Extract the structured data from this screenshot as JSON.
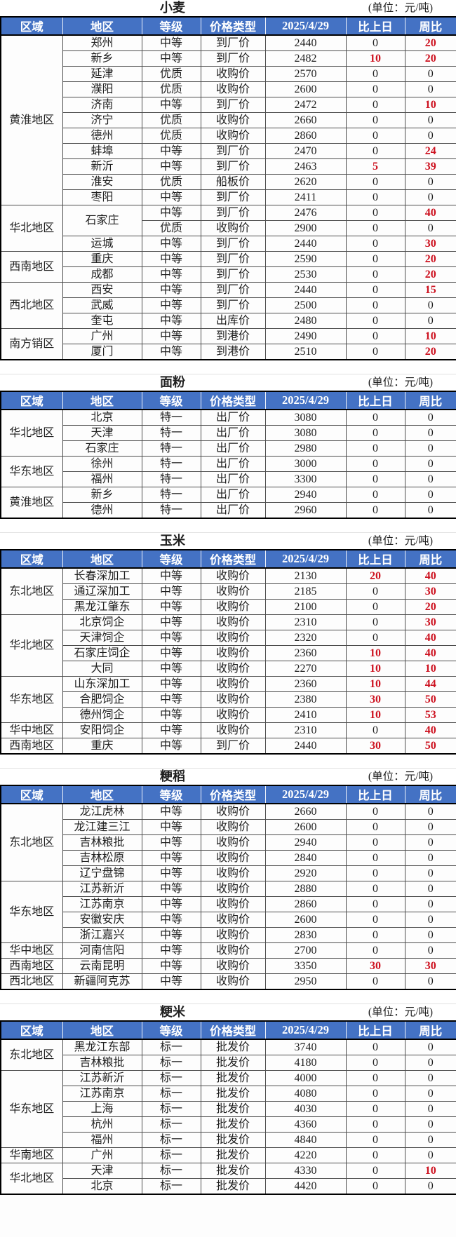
{
  "unit_label": "(单位：元/吨)",
  "columns": [
    "区域",
    "地区",
    "等级",
    "价格类型",
    "2025/4/29",
    "比上日",
    "周比"
  ],
  "colors": {
    "header_bg": "#4472c4",
    "header_text": "#ffffff",
    "change_red": "#cd1220",
    "body_text": "#1f1f1f"
  },
  "sections": [
    {
      "id": "wheat",
      "title": "小麦",
      "groups": [
        {
          "region": "黄淮地区",
          "rows": [
            {
              "place": "郑州",
              "grade": "中等",
              "ptype": "到厂价",
              "price": "2440",
              "dod": "0",
              "wow": "20",
              "red": [
                "wow"
              ]
            },
            {
              "place": "新乡",
              "grade": "中等",
              "ptype": "到厂价",
              "price": "2482",
              "dod": "10",
              "wow": "20",
              "red": [
                "dod",
                "wow"
              ]
            },
            {
              "place": "延津",
              "grade": "优质",
              "ptype": "收购价",
              "price": "2570",
              "dod": "0",
              "wow": "0",
              "red": []
            },
            {
              "place": "濮阳",
              "grade": "优质",
              "ptype": "收购价",
              "price": "2600",
              "dod": "0",
              "wow": "0",
              "red": []
            },
            {
              "place": "济南",
              "grade": "中等",
              "ptype": "到厂价",
              "price": "2472",
              "dod": "0",
              "wow": "10",
              "red": [
                "wow"
              ]
            },
            {
              "place": "济宁",
              "grade": "优质",
              "ptype": "收购价",
              "price": "2660",
              "dod": "0",
              "wow": "0",
              "red": []
            },
            {
              "place": "德州",
              "grade": "优质",
              "ptype": "收购价",
              "price": "2860",
              "dod": "0",
              "wow": "0",
              "red": []
            },
            {
              "place": "蚌埠",
              "grade": "中等",
              "ptype": "到厂价",
              "price": "2470",
              "dod": "0",
              "wow": "24",
              "red": [
                "wow"
              ]
            },
            {
              "place": "新沂",
              "grade": "中等",
              "ptype": "到厂价",
              "price": "2463",
              "dod": "5",
              "wow": "39",
              "red": [
                "dod",
                "wow"
              ]
            },
            {
              "place": "淮安",
              "grade": "优质",
              "ptype": "船板价",
              "price": "2620",
              "dod": "0",
              "wow": "0",
              "red": []
            },
            {
              "place": "枣阳",
              "grade": "中等",
              "ptype": "到厂价",
              "price": "2411",
              "dod": "0",
              "wow": "0",
              "red": []
            }
          ]
        },
        {
          "region": "华北地区",
          "rows": [
            {
              "place": "石家庄",
              "place_span": 2,
              "grade": "中等",
              "ptype": "到厂价",
              "price": "2476",
              "dod": "0",
              "wow": "40",
              "red": [
                "wow"
              ]
            },
            {
              "place_skip": true,
              "grade": "优质",
              "ptype": "收购价",
              "price": "2900",
              "dod": "0",
              "wow": "0",
              "red": []
            },
            {
              "place": "运城",
              "grade": "中等",
              "ptype": "到厂价",
              "price": "2440",
              "dod": "0",
              "wow": "30",
              "red": [
                "wow"
              ]
            }
          ]
        },
        {
          "region": "西南地区",
          "rows": [
            {
              "place": "重庆",
              "grade": "中等",
              "ptype": "到厂价",
              "price": "2590",
              "dod": "0",
              "wow": "20",
              "red": [
                "wow"
              ]
            },
            {
              "place": "成都",
              "grade": "中等",
              "ptype": "到厂价",
              "price": "2530",
              "dod": "0",
              "wow": "20",
              "red": [
                "wow"
              ]
            }
          ]
        },
        {
          "region": "西北地区",
          "rows": [
            {
              "place": "西安",
              "grade": "中等",
              "ptype": "到厂价",
              "price": "2440",
              "dod": "0",
              "wow": "15",
              "red": [
                "wow"
              ]
            },
            {
              "place": "武威",
              "grade": "中等",
              "ptype": "到厂价",
              "price": "2500",
              "dod": "0",
              "wow": "0",
              "red": []
            },
            {
              "place": "奎屯",
              "grade": "中等",
              "ptype": "出库价",
              "price": "2480",
              "dod": "0",
              "wow": "0",
              "red": []
            }
          ]
        },
        {
          "region": "南方销区",
          "rows": [
            {
              "place": "广州",
              "grade": "中等",
              "ptype": "到港价",
              "price": "2490",
              "dod": "0",
              "wow": "10",
              "red": [
                "wow"
              ]
            },
            {
              "place": "厦门",
              "grade": "中等",
              "ptype": "到港价",
              "price": "2510",
              "dod": "0",
              "wow": "20",
              "red": [
                "wow"
              ]
            }
          ]
        }
      ]
    },
    {
      "id": "flour",
      "title": "面粉",
      "groups": [
        {
          "region": "华北地区",
          "rows": [
            {
              "place": "北京",
              "grade": "特一",
              "ptype": "出厂价",
              "price": "3080",
              "dod": "0",
              "wow": "0",
              "red": []
            },
            {
              "place": "天津",
              "grade": "特一",
              "ptype": "出厂价",
              "price": "3080",
              "dod": "0",
              "wow": "0",
              "red": []
            },
            {
              "place": "石家庄",
              "grade": "特一",
              "ptype": "出厂价",
              "price": "2980",
              "dod": "0",
              "wow": "0",
              "red": []
            }
          ]
        },
        {
          "region": "华东地区",
          "rows": [
            {
              "place": "徐州",
              "grade": "特一",
              "ptype": "出厂价",
              "price": "3000",
              "dod": "0",
              "wow": "0",
              "red": []
            },
            {
              "place": "福州",
              "grade": "特一",
              "ptype": "出厂价",
              "price": "3300",
              "dod": "0",
              "wow": "0",
              "red": []
            }
          ]
        },
        {
          "region": "黄淮地区",
          "rows": [
            {
              "place": "新乡",
              "grade": "特一",
              "ptype": "出厂价",
              "price": "2940",
              "dod": "0",
              "wow": "0",
              "red": []
            },
            {
              "place": "德州",
              "grade": "特一",
              "ptype": "出厂价",
              "price": "2960",
              "dod": "0",
              "wow": "0",
              "red": []
            }
          ]
        }
      ]
    },
    {
      "id": "corn",
      "title": "玉米",
      "groups": [
        {
          "region": "东北地区",
          "rows": [
            {
              "place": "长春深加工",
              "grade": "中等",
              "ptype": "收购价",
              "price": "2130",
              "dod": "20",
              "wow": "40",
              "red": [
                "dod",
                "wow"
              ]
            },
            {
              "place": "通辽深加工",
              "grade": "中等",
              "ptype": "收购价",
              "price": "2185",
              "dod": "0",
              "wow": "30",
              "red": [
                "wow"
              ]
            },
            {
              "place": "黑龙江肇东",
              "grade": "中等",
              "ptype": "收购价",
              "price": "2100",
              "dod": "0",
              "wow": "20",
              "red": [
                "wow"
              ]
            }
          ]
        },
        {
          "region": "华北地区",
          "rows": [
            {
              "place": "北京饲企",
              "grade": "中等",
              "ptype": "收购价",
              "price": "2310",
              "dod": "0",
              "wow": "30",
              "red": [
                "wow"
              ]
            },
            {
              "place": "天津饲企",
              "grade": "中等",
              "ptype": "收购价",
              "price": "2320",
              "dod": "0",
              "wow": "40",
              "red": [
                "wow"
              ]
            },
            {
              "place": "石家庄饲企",
              "grade": "中等",
              "ptype": "收购价",
              "price": "2360",
              "dod": "10",
              "wow": "40",
              "red": [
                "dod",
                "wow"
              ]
            },
            {
              "place": "大同",
              "grade": "中等",
              "ptype": "收购价",
              "price": "2270",
              "dod": "10",
              "wow": "10",
              "red": [
                "dod",
                "wow"
              ]
            }
          ]
        },
        {
          "region": "华东地区",
          "rows": [
            {
              "place": "山东深加工",
              "grade": "中等",
              "ptype": "收购价",
              "price": "2360",
              "dod": "10",
              "wow": "44",
              "red": [
                "dod",
                "wow"
              ]
            },
            {
              "place": "合肥饲企",
              "grade": "中等",
              "ptype": "收购价",
              "price": "2380",
              "dod": "30",
              "wow": "50",
              "red": [
                "dod",
                "wow"
              ]
            },
            {
              "place": "德州饲企",
              "grade": "中等",
              "ptype": "收购价",
              "price": "2410",
              "dod": "10",
              "wow": "53",
              "red": [
                "dod",
                "wow"
              ]
            }
          ]
        },
        {
          "region": "华中地区",
          "rows": [
            {
              "place": "安阳饲企",
              "grade": "中等",
              "ptype": "收购价",
              "price": "2310",
              "dod": "0",
              "wow": "40",
              "red": [
                "wow"
              ]
            }
          ]
        },
        {
          "region": "西南地区",
          "rows": [
            {
              "place": "重庆",
              "grade": "中等",
              "ptype": "到厂价",
              "price": "2440",
              "dod": "30",
              "wow": "50",
              "red": [
                "dod",
                "wow"
              ]
            }
          ]
        }
      ]
    },
    {
      "id": "japonica-paddy",
      "title": "粳稻",
      "groups": [
        {
          "region": "东北地区",
          "rows": [
            {
              "place": "龙江虎林",
              "grade": "中等",
              "ptype": "收购价",
              "price": "2660",
              "dod": "0",
              "wow": "0",
              "red": []
            },
            {
              "place": "龙江建三江",
              "grade": "中等",
              "ptype": "收购价",
              "price": "2600",
              "dod": "0",
              "wow": "0",
              "red": []
            },
            {
              "place": "吉林粮批",
              "grade": "中等",
              "ptype": "收购价",
              "price": "2940",
              "dod": "0",
              "wow": "0",
              "red": []
            },
            {
              "place": "吉林松原",
              "grade": "中等",
              "ptype": "收购价",
              "price": "2840",
              "dod": "0",
              "wow": "0",
              "red": []
            },
            {
              "place": "辽宁盘锦",
              "grade": "中等",
              "ptype": "收购价",
              "price": "2920",
              "dod": "0",
              "wow": "0",
              "red": []
            }
          ]
        },
        {
          "region": "华东地区",
          "rows": [
            {
              "place": "江苏新沂",
              "grade": "中等",
              "ptype": "收购价",
              "price": "2880",
              "dod": "0",
              "wow": "0",
              "red": []
            },
            {
              "place": "江苏南京",
              "grade": "中等",
              "ptype": "收购价",
              "price": "2860",
              "dod": "0",
              "wow": "0",
              "red": []
            },
            {
              "place": "安徽安庆",
              "grade": "中等",
              "ptype": "收购价",
              "price": "2600",
              "dod": "0",
              "wow": "0",
              "red": []
            },
            {
              "place": "浙江嘉兴",
              "grade": "中等",
              "ptype": "收购价",
              "price": "2830",
              "dod": "0",
              "wow": "0",
              "red": []
            }
          ]
        },
        {
          "region": "华中地区",
          "rows": [
            {
              "place": "河南信阳",
              "grade": "中等",
              "ptype": "收购价",
              "price": "2700",
              "dod": "0",
              "wow": "0",
              "red": []
            }
          ]
        },
        {
          "region": "西南地区",
          "rows": [
            {
              "place": "云南昆明",
              "grade": "中等",
              "ptype": "收购价",
              "price": "3350",
              "dod": "30",
              "wow": "30",
              "red": [
                "dod",
                "wow"
              ]
            }
          ]
        },
        {
          "region": "西北地区",
          "rows": [
            {
              "place": "新疆阿克苏",
              "grade": "中等",
              "ptype": "收购价",
              "price": "2950",
              "dod": "0",
              "wow": "0",
              "red": []
            }
          ]
        }
      ]
    },
    {
      "id": "japonica-rice",
      "title": "粳米",
      "groups": [
        {
          "region": "东北地区",
          "rows": [
            {
              "place": "黑龙江东部",
              "grade": "标一",
              "ptype": "批发价",
              "price": "3740",
              "dod": "0",
              "wow": "0",
              "red": []
            },
            {
              "place": "吉林粮批",
              "grade": "标一",
              "ptype": "批发价",
              "price": "4180",
              "dod": "0",
              "wow": "0",
              "red": []
            }
          ]
        },
        {
          "region": "华东地区",
          "rows": [
            {
              "place": "江苏新沂",
              "grade": "标一",
              "ptype": "批发价",
              "price": "4000",
              "dod": "0",
              "wow": "0",
              "red": []
            },
            {
              "place": "江苏南京",
              "grade": "标一",
              "ptype": "批发价",
              "price": "4080",
              "dod": "0",
              "wow": "0",
              "red": []
            },
            {
              "place": "上海",
              "grade": "标一",
              "ptype": "批发价",
              "price": "4030",
              "dod": "0",
              "wow": "0",
              "red": []
            },
            {
              "place": "杭州",
              "grade": "标一",
              "ptype": "批发价",
              "price": "4360",
              "dod": "0",
              "wow": "0",
              "red": []
            },
            {
              "place": "福州",
              "grade": "标一",
              "ptype": "批发价",
              "price": "4840",
              "dod": "0",
              "wow": "0",
              "red": []
            }
          ]
        },
        {
          "region": "华南地区",
          "rows": [
            {
              "place": "广州",
              "grade": "标一",
              "ptype": "批发价",
              "price": "4220",
              "dod": "0",
              "wow": "0",
              "red": []
            }
          ]
        },
        {
          "region": "华北地区",
          "rows": [
            {
              "place": "天津",
              "grade": "标一",
              "ptype": "批发价",
              "price": "4330",
              "dod": "0",
              "wow": "10",
              "red": [
                "wow"
              ]
            },
            {
              "place": "北京",
              "grade": "标一",
              "ptype": "批发价",
              "price": "4420",
              "dod": "0",
              "wow": "0",
              "red": []
            }
          ]
        }
      ]
    }
  ]
}
